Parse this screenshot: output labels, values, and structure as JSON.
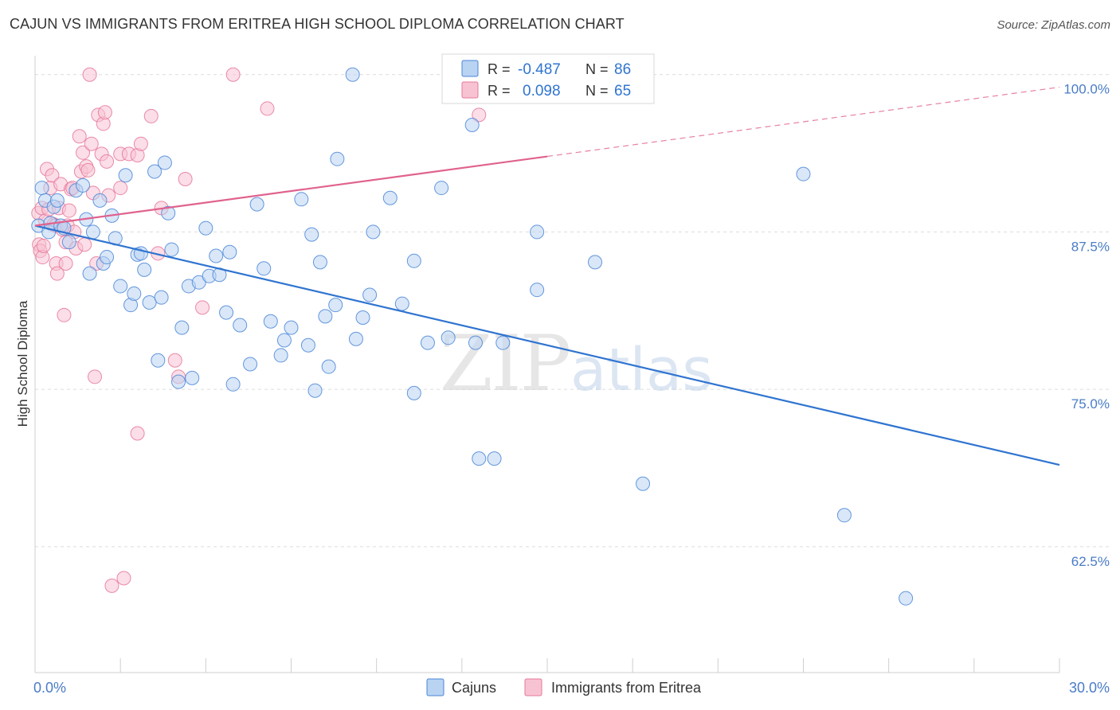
{
  "title": "CAJUN VS IMMIGRANTS FROM ERITREA HIGH SCHOOL DIPLOMA CORRELATION CHART",
  "source": "Source: ZipAtlas.com",
  "watermark": {
    "zip": "ZIP",
    "atlas": "atlas"
  },
  "colors": {
    "blue": "#4a86d8",
    "blue_fill": "#b9d3f3",
    "blue_line": "#2f74d0",
    "pink": "#e8779a",
    "pink_fill": "#f7c3d3",
    "pink_line": "#e0628e",
    "tick_label": "#4a7cc7",
    "grid": "#dcdcdc"
  },
  "legend_box": {
    "rows": [
      {
        "r_label": "R =",
        "r_value": "-0.487",
        "n_label": "N =",
        "n_value": "86"
      },
      {
        "r_label": "R =",
        "r_value": "0.098",
        "n_label": "N =",
        "n_value": "65"
      }
    ]
  },
  "chart_data": {
    "type": "scatter",
    "title": "CAJUN VS IMMIGRANTS FROM ERITREA HIGH SCHOOL DIPLOMA CORRELATION CHART",
    "xlabel": "",
    "ylabel": "High School Diploma",
    "xlim": [
      0,
      30
    ],
    "ylim": [
      52.5,
      101.5
    ],
    "x_tick_labels": [
      {
        "value": 0,
        "label": "0.0%"
      },
      {
        "value": 30,
        "label": "30.0%"
      }
    ],
    "y_tick_labels": [
      {
        "value": 100,
        "label": "100.0%"
      },
      {
        "value": 87.5,
        "label": "87.5%"
      },
      {
        "value": 75,
        "label": "75.0%"
      },
      {
        "value": 62.5,
        "label": "62.5%"
      }
    ],
    "grid": true,
    "legend_position": "bottom",
    "series": [
      {
        "name": "Cajuns",
        "r": -0.487,
        "n": 86,
        "trend": {
          "x0": 0,
          "y0": 88.0,
          "x1": 30,
          "y1": 69.0,
          "solid_until": 30
        },
        "points": [
          [
            0.1,
            88.0
          ],
          [
            0.2,
            91.0
          ],
          [
            0.3,
            90.0
          ],
          [
            0.4,
            87.5
          ],
          [
            0.45,
            88.2
          ],
          [
            0.55,
            89.5
          ],
          [
            0.65,
            90.0
          ],
          [
            0.75,
            88.0
          ],
          [
            0.85,
            87.8
          ],
          [
            1.0,
            86.7
          ],
          [
            1.2,
            90.8
          ],
          [
            1.4,
            91.2
          ],
          [
            1.5,
            88.5
          ],
          [
            1.6,
            84.2
          ],
          [
            1.7,
            87.5
          ],
          [
            1.9,
            90.0
          ],
          [
            2.0,
            85.0
          ],
          [
            2.1,
            85.5
          ],
          [
            2.25,
            88.8
          ],
          [
            2.35,
            87.0
          ],
          [
            2.5,
            83.2
          ],
          [
            2.65,
            92.0
          ],
          [
            2.8,
            81.7
          ],
          [
            2.9,
            82.6
          ],
          [
            3.0,
            85.7
          ],
          [
            3.1,
            85.8
          ],
          [
            3.2,
            84.5
          ],
          [
            3.35,
            81.9
          ],
          [
            3.5,
            92.3
          ],
          [
            3.6,
            77.3
          ],
          [
            3.7,
            82.3
          ],
          [
            3.8,
            93.0
          ],
          [
            3.9,
            89.0
          ],
          [
            4.0,
            86.1
          ],
          [
            4.2,
            75.6
          ],
          [
            4.3,
            79.9
          ],
          [
            4.5,
            83.2
          ],
          [
            4.6,
            75.9
          ],
          [
            4.8,
            83.5
          ],
          [
            5.0,
            87.8
          ],
          [
            5.1,
            84.0
          ],
          [
            5.3,
            85.6
          ],
          [
            5.4,
            84.1
          ],
          [
            5.6,
            81.1
          ],
          [
            5.7,
            85.9
          ],
          [
            5.8,
            75.4
          ],
          [
            6.0,
            80.1
          ],
          [
            6.3,
            77.0
          ],
          [
            6.5,
            89.7
          ],
          [
            6.7,
            84.6
          ],
          [
            6.9,
            80.4
          ],
          [
            7.2,
            77.7
          ],
          [
            7.3,
            78.9
          ],
          [
            7.5,
            79.9
          ],
          [
            7.8,
            90.1
          ],
          [
            8.0,
            78.5
          ],
          [
            8.1,
            87.3
          ],
          [
            8.2,
            74.9
          ],
          [
            8.35,
            85.1
          ],
          [
            8.5,
            80.8
          ],
          [
            8.6,
            76.8
          ],
          [
            8.8,
            81.7
          ],
          [
            8.85,
            93.3
          ],
          [
            9.3,
            100.0
          ],
          [
            9.4,
            79.0
          ],
          [
            9.6,
            80.7
          ],
          [
            9.8,
            82.5
          ],
          [
            9.9,
            87.5
          ],
          [
            10.4,
            90.2
          ],
          [
            10.75,
            81.8
          ],
          [
            11.1,
            85.2
          ],
          [
            11.1,
            74.7
          ],
          [
            11.5,
            78.7
          ],
          [
            11.9,
            91.0
          ],
          [
            12.1,
            79.1
          ],
          [
            12.9,
            78.7
          ],
          [
            12.8,
            96.0
          ],
          [
            13.0,
            69.5
          ],
          [
            13.45,
            69.5
          ],
          [
            13.7,
            78.7
          ],
          [
            14.7,
            87.5
          ],
          [
            14.7,
            82.9
          ],
          [
            16.4,
            85.1
          ],
          [
            17.8,
            67.5
          ],
          [
            22.5,
            92.1
          ],
          [
            23.7,
            65.0
          ],
          [
            25.5,
            58.4
          ]
        ]
      },
      {
        "name": "Immigrants from Eritrea",
        "r": 0.098,
        "n": 65,
        "trend": {
          "x0": 0,
          "y0": 88.0,
          "x1": 30,
          "y1": 99.0,
          "solid_until": 15
        },
        "points": [
          [
            0.1,
            89.0
          ],
          [
            0.12,
            86.5
          ],
          [
            0.15,
            86.0
          ],
          [
            0.2,
            89.4
          ],
          [
            0.22,
            85.5
          ],
          [
            0.25,
            86.4
          ],
          [
            0.3,
            88.4
          ],
          [
            0.35,
            92.5
          ],
          [
            0.4,
            89.3
          ],
          [
            0.45,
            91.0
          ],
          [
            0.5,
            92.0
          ],
          [
            0.55,
            88.1
          ],
          [
            0.6,
            88.0
          ],
          [
            0.62,
            85.0
          ],
          [
            0.65,
            84.2
          ],
          [
            0.7,
            89.4
          ],
          [
            0.75,
            91.3
          ],
          [
            0.8,
            87.7
          ],
          [
            0.85,
            80.9
          ],
          [
            0.9,
            86.7
          ],
          [
            0.9,
            85.0
          ],
          [
            0.95,
            88.0
          ],
          [
            1.0,
            89.2
          ],
          [
            1.05,
            90.9
          ],
          [
            1.1,
            91.0
          ],
          [
            1.15,
            87.5
          ],
          [
            1.2,
            86.2
          ],
          [
            1.3,
            95.1
          ],
          [
            1.35,
            92.3
          ],
          [
            1.4,
            93.8
          ],
          [
            1.45,
            86.5
          ],
          [
            1.5,
            92.7
          ],
          [
            1.55,
            92.4
          ],
          [
            1.6,
            100.0
          ],
          [
            1.65,
            94.5
          ],
          [
            1.7,
            90.6
          ],
          [
            1.75,
            76.0
          ],
          [
            1.8,
            85.0
          ],
          [
            1.85,
            96.8
          ],
          [
            1.95,
            93.7
          ],
          [
            2.0,
            96.1
          ],
          [
            2.05,
            97.0
          ],
          [
            2.1,
            93.1
          ],
          [
            2.15,
            90.4
          ],
          [
            2.25,
            59.4
          ],
          [
            2.5,
            91.0
          ],
          [
            2.5,
            93.7
          ],
          [
            2.6,
            60.0
          ],
          [
            2.75,
            93.7
          ],
          [
            3.0,
            71.5
          ],
          [
            3.0,
            93.6
          ],
          [
            3.1,
            94.5
          ],
          [
            3.4,
            96.7
          ],
          [
            3.6,
            85.8
          ],
          [
            3.7,
            89.4
          ],
          [
            4.1,
            77.3
          ],
          [
            4.2,
            76.0
          ],
          [
            4.4,
            91.7
          ],
          [
            4.9,
            81.5
          ],
          [
            5.8,
            100.0
          ],
          [
            6.8,
            97.3
          ],
          [
            13.0,
            96.8
          ]
        ]
      }
    ]
  }
}
